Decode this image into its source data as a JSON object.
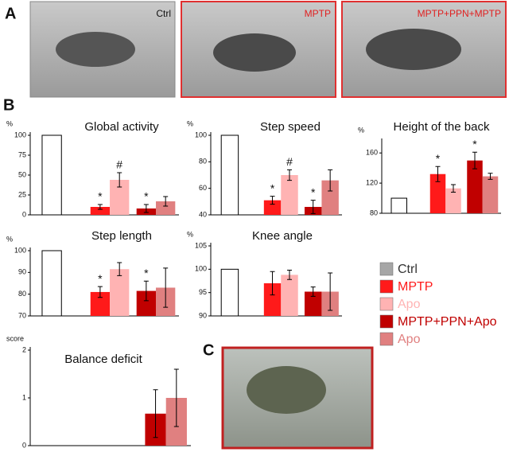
{
  "panels": {
    "a": "A",
    "b": "B",
    "c": "C",
    "photos": [
      "Ctrl",
      "MPTP",
      "MPTP+PPN+MPTP"
    ]
  },
  "legend": {
    "items": [
      {
        "name": "Ctrl",
        "color": "#a6a6a6",
        "bar_fill": "#ffffff",
        "text_color": "#333333"
      },
      {
        "name": "MPTP",
        "color": "#ff1a1a",
        "bar_fill": "#ff1a1a",
        "text_color": "#ff1a1a"
      },
      {
        "name": "Apo",
        "color": "#ffb3b3",
        "bar_fill": "#ffb3b3",
        "text_color": "#ffb3b3"
      },
      {
        "name": "MPTP+PPN+Apo",
        "color": "#c00000",
        "bar_fill": "#c00000",
        "text_color": "#c00000"
      },
      {
        "name": "Apo",
        "color": "#e08080",
        "bar_fill": "#e08080",
        "text_color": "#e08080"
      }
    ]
  },
  "chart_data": [
    {
      "type": "bar",
      "title": "Global activity",
      "ylabel": "%",
      "ylim": [
        0,
        100
      ],
      "yticks": [
        0,
        25,
        50,
        75,
        100
      ],
      "values": [
        100,
        10,
        44,
        8,
        17
      ],
      "errors": [
        null,
        3,
        9,
        5,
        6
      ],
      "annotations": [
        null,
        "*",
        "#",
        "*",
        null
      ]
    },
    {
      "type": "bar",
      "title": "Step speed",
      "ylabel": "%",
      "ylim": [
        40,
        100
      ],
      "yticks": [
        40,
        60,
        80,
        100
      ],
      "values": [
        100,
        51,
        70,
        46,
        66
      ],
      "errors": [
        null,
        3,
        4,
        5,
        8
      ],
      "annotations": [
        null,
        "*",
        "#",
        "*",
        null
      ]
    },
    {
      "type": "bar",
      "title": "Height of the back",
      "ylabel": "%",
      "ylim": [
        80,
        175
      ],
      "yticks": [
        80,
        120,
        160
      ],
      "values": [
        100,
        132,
        113,
        150,
        129
      ],
      "errors": [
        null,
        10,
        5,
        11,
        4
      ],
      "annotations": [
        null,
        "*",
        null,
        "*",
        null
      ]
    },
    {
      "type": "bar",
      "title": "Step length",
      "ylabel": "%",
      "ylim": [
        70,
        100
      ],
      "yticks": [
        70,
        80,
        90,
        100
      ],
      "values": [
        100,
        81,
        91.5,
        81.5,
        83
      ],
      "errors": [
        null,
        2.5,
        3,
        4.5,
        9
      ],
      "annotations": [
        null,
        "*",
        null,
        "*",
        null
      ]
    },
    {
      "type": "bar",
      "title": "Knee angle",
      "ylabel": "%",
      "ylim": [
        90,
        105
      ],
      "yticks": [
        90,
        95,
        100,
        105
      ],
      "values": [
        100,
        97,
        98.8,
        95.2,
        95.2
      ],
      "errors": [
        null,
        2.5,
        1,
        1,
        4
      ],
      "annotations": [
        null,
        null,
        null,
        null,
        null
      ]
    },
    {
      "type": "bar",
      "title": "Balance deficit",
      "ylabel": "score",
      "ylim": [
        0,
        2
      ],
      "yticks": [
        0,
        1,
        2
      ],
      "values": [
        0,
        0,
        0,
        0.67,
        1.0
      ],
      "errors": [
        null,
        null,
        null,
        0.5,
        0.6
      ],
      "annotations": [
        null,
        null,
        null,
        null,
        null
      ]
    }
  ]
}
